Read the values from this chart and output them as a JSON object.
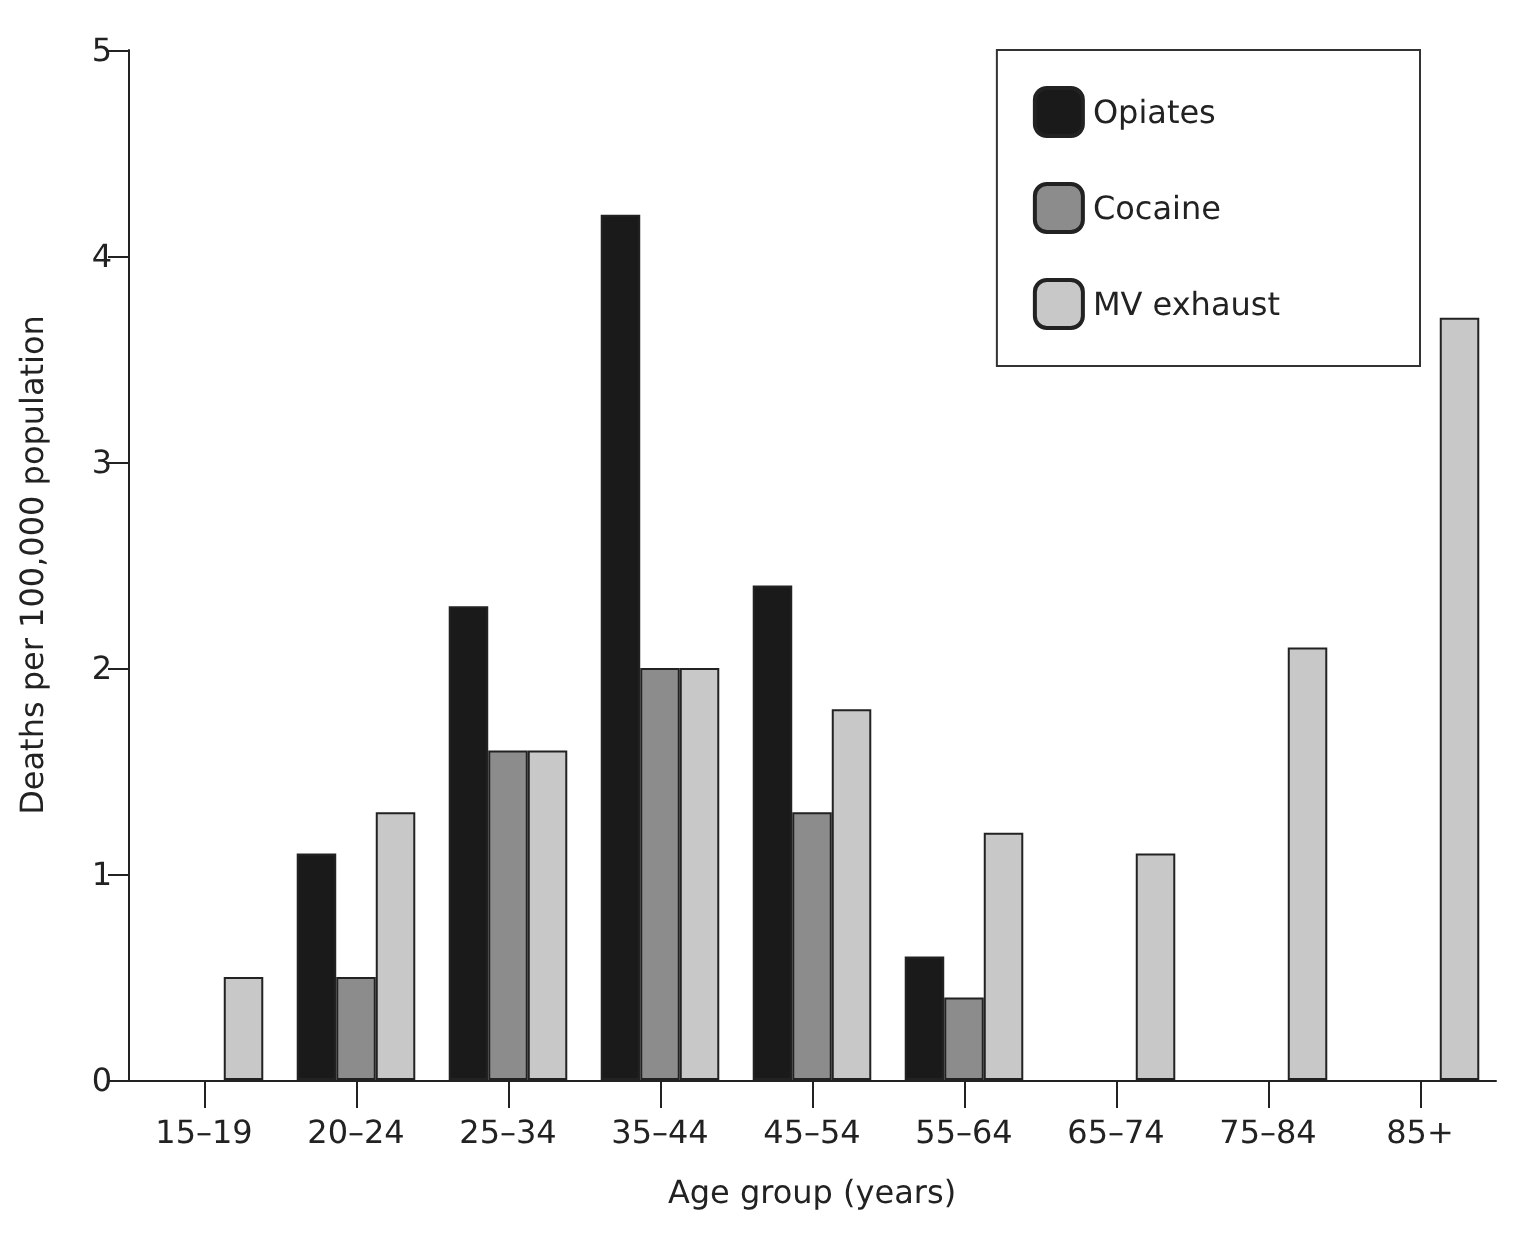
{
  "chart_data": {
    "type": "bar",
    "xlabel": "Age group (years)",
    "ylabel": "Deaths per 100,000 population",
    "categories": [
      "15–19",
      "20–24",
      "25–34",
      "35–44",
      "45–54",
      "55–64",
      "65–74",
      "75–84",
      "85+"
    ],
    "series": [
      {
        "name": "Opiates",
        "color": "#1a1a1a",
        "values": [
          null,
          1.1,
          2.3,
          4.2,
          2.4,
          0.6,
          null,
          null,
          null
        ]
      },
      {
        "name": "Cocaine",
        "color": "#8c8c8c",
        "values": [
          null,
          0.5,
          1.6,
          2.0,
          1.3,
          0.4,
          null,
          null,
          null
        ]
      },
      {
        "name": "MV exhaust",
        "color": "#c8c8c8",
        "values": [
          0.5,
          1.3,
          1.6,
          2.0,
          1.8,
          1.2,
          1.1,
          2.1,
          3.7
        ]
      }
    ],
    "ylim": [
      0,
      5
    ],
    "yticks": [
      0,
      1,
      2,
      3,
      4,
      5
    ],
    "grid": false,
    "legend": "top right"
  }
}
